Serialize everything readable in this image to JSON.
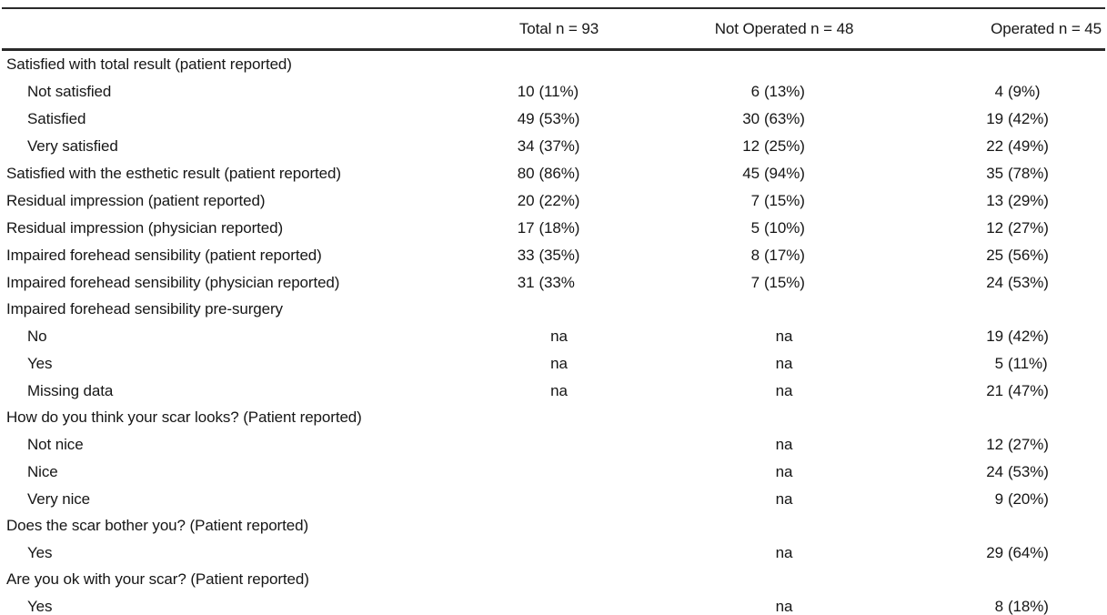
{
  "table": {
    "columns": {
      "label": "",
      "total": "Total n = 93",
      "not_operated": "Not Operated n = 48",
      "operated": "Operated n = 45"
    },
    "na_text": "na",
    "rows": [
      {
        "label": "Satisfied with total result (patient reported)",
        "indent": 0,
        "total": "",
        "not_operated": "",
        "operated": ""
      },
      {
        "label": "Not satisfied",
        "indent": 1,
        "total": "10 (11%)",
        "not_operated": "6 (13%)",
        "operated": "4 (9%)"
      },
      {
        "label": "Satisfied",
        "indent": 1,
        "total": "49 (53%)",
        "not_operated": "30 (63%)",
        "operated": "19 (42%)"
      },
      {
        "label": "Very satisfied",
        "indent": 1,
        "total": "34 (37%)",
        "not_operated": "12 (25%)",
        "operated": "22 (49%)"
      },
      {
        "label": "Satisfied with the esthetic result (patient reported)",
        "indent": 0,
        "total": "80 (86%)",
        "not_operated": "45 (94%)",
        "operated": "35 (78%)"
      },
      {
        "label": "Residual impression (patient reported)",
        "indent": 0,
        "total": "20 (22%)",
        "not_operated": "7 (15%)",
        "operated": "13 (29%)"
      },
      {
        "label": "Residual impression (physician reported)",
        "indent": 0,
        "total": "17 (18%)",
        "not_operated": "5 (10%)",
        "operated": "12 (27%)"
      },
      {
        "label": "Impaired forehead sensibility (patient reported)",
        "indent": 0,
        "total": "33 (35%)",
        "not_operated": "8 (17%)",
        "operated": "25 (56%)"
      },
      {
        "label": "Impaired forehead sensibility (physician reported)",
        "indent": 0,
        "total": "31 (33%",
        "not_operated": "7 (15%)",
        "operated": "24 (53%)"
      },
      {
        "label": "Impaired forehead sensibility pre-surgery",
        "indent": 0,
        "total": "",
        "not_operated": "",
        "operated": ""
      },
      {
        "label": "No",
        "indent": 1,
        "total": "na",
        "not_operated": "na",
        "operated": "19 (42%)"
      },
      {
        "label": "Yes",
        "indent": 1,
        "total": "na",
        "not_operated": "na",
        "operated": "5 (11%)"
      },
      {
        "label": "Missing data",
        "indent": 1,
        "total": "na",
        "not_operated": "na",
        "operated": "21 (47%)"
      },
      {
        "label": "How do you think your scar looks? (Patient reported)",
        "indent": 0,
        "total": "",
        "not_operated": "",
        "operated": ""
      },
      {
        "label": "Not nice",
        "indent": 1,
        "total": "",
        "not_operated": "na",
        "operated": "12 (27%)"
      },
      {
        "label": "Nice",
        "indent": 1,
        "total": "",
        "not_operated": "na",
        "operated": "24 (53%)"
      },
      {
        "label": "Very nice",
        "indent": 1,
        "total": "",
        "not_operated": "na",
        "operated": "9 (20%)"
      },
      {
        "label": "Does the scar bother you? (Patient reported)",
        "indent": 0,
        "total": "",
        "not_operated": "",
        "operated": ""
      },
      {
        "label": "Yes",
        "indent": 1,
        "total": "",
        "not_operated": "na",
        "operated": "29 (64%)"
      },
      {
        "label": "Are you ok with your scar? (Patient reported)",
        "indent": 0,
        "total": "",
        "not_operated": "",
        "operated": ""
      },
      {
        "label": "Yes",
        "indent": 1,
        "total": "",
        "not_operated": "na",
        "operated": "8 (18%)"
      }
    ]
  }
}
